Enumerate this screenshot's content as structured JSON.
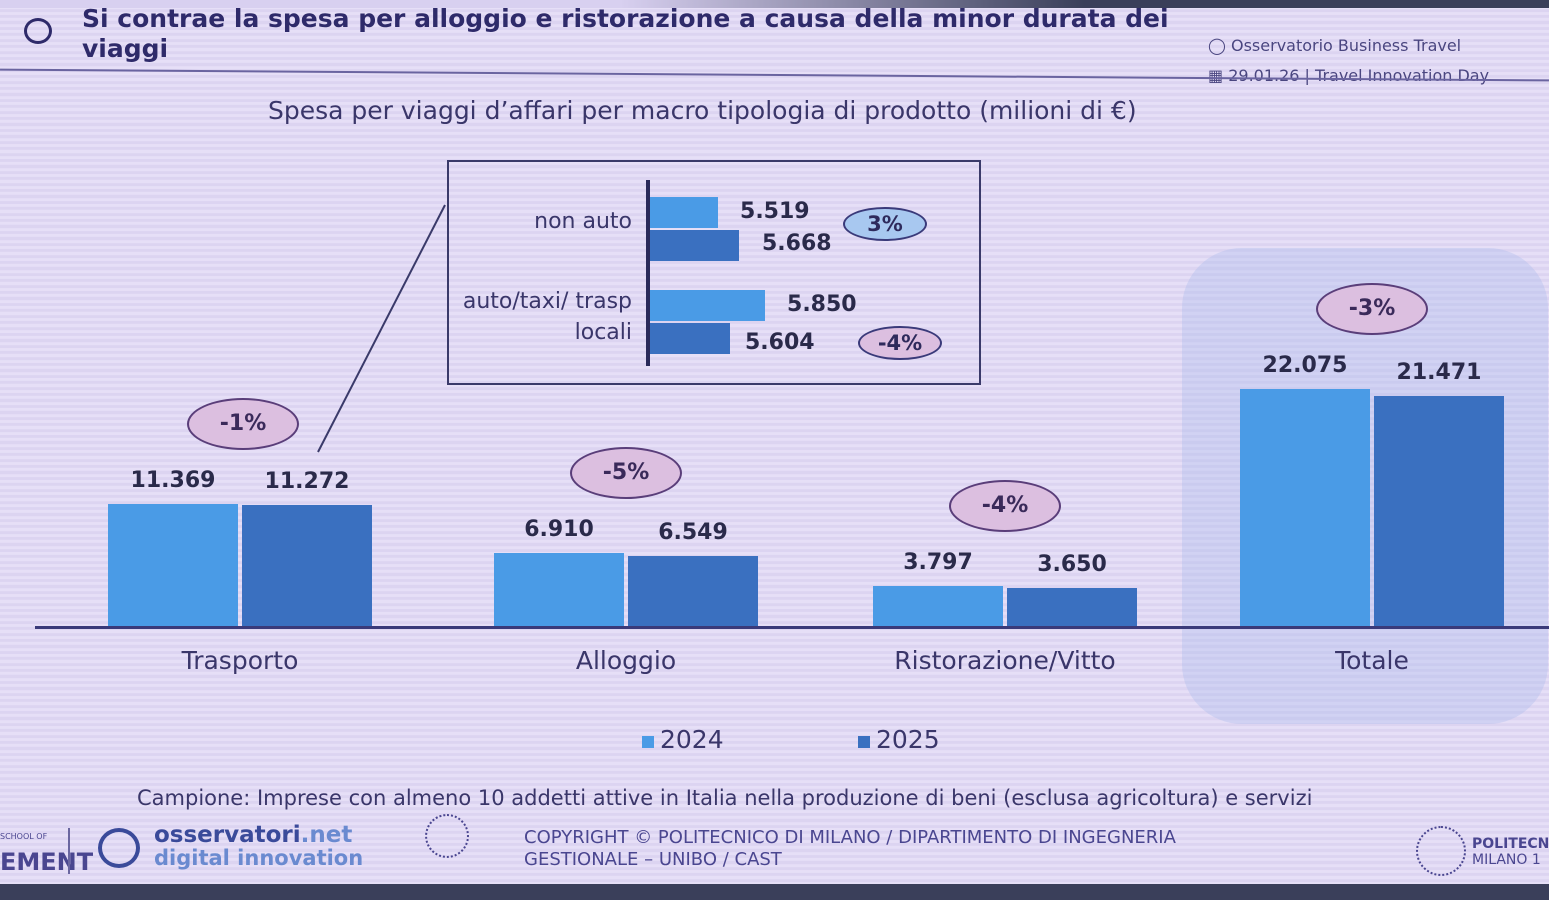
{
  "header": {
    "title": "Si contrae la spesa per alloggio e ristorazione a causa della minor durata dei viaggi",
    "observatory": "Osservatorio Business Travel",
    "date_event": "29.01.26 | Travel Innovation Day"
  },
  "chart_data": {
    "type": "bar",
    "title": "Spesa per viaggi d’affari per macro tipologia di prodotto (milioni di €)",
    "categories": [
      "Trasporto",
      "Alloggio",
      "Ristorazione/Vitto",
      "Totale"
    ],
    "series": [
      {
        "name": "2024",
        "values": [
          11369,
          6910,
          3797,
          22075
        ],
        "labels": [
          "11.369",
          "6.910",
          "3.797",
          "22.075"
        ],
        "color": "#4a9be6"
      },
      {
        "name": "2025",
        "values": [
          11272,
          6549,
          3650,
          21471
        ],
        "labels": [
          "11.272",
          "6.549",
          "3.650",
          "21.471"
        ],
        "color": "#3a70c0"
      }
    ],
    "changes": [
      "-1%",
      "-5%",
      "-4%",
      "-3%"
    ],
    "ylim": [
      0,
      22075
    ],
    "legend": "bottom-center",
    "inset": {
      "type": "barh",
      "categories": [
        "non auto",
        "auto/taxi/ trasp locali"
      ],
      "series_2024": [
        5519,
        5850
      ],
      "series_2025": [
        5668,
        5604
      ],
      "labels_2024": [
        "5.519",
        "5.850"
      ],
      "labels_2025": [
        "5.668",
        "5.604"
      ],
      "changes": [
        "3%",
        "-4%"
      ],
      "xlim": [
        5040,
        6000
      ]
    }
  },
  "footer": {
    "sample_note": "Campione: Imprese con almeno 10 addetti attive in Italia nella produzione di beni (esclusa agricoltura) e servizi",
    "logo_osservatori_1": "osservatori",
    "logo_osservatori_2": ".net",
    "logo_osservatori_3": "digital innovation",
    "copyright_1": "COPYRIGHT © POLITECNICO DI MILANO / DIPARTIMENTO DI INGEGNERIA",
    "copyright_2": "GESTIONALE – UNIBO / CAST",
    "polimi_1": "POLITECNI",
    "polimi_2": "MILANO 1",
    "school_1": "SCHOOL OF",
    "school_2": "EMENT"
  }
}
